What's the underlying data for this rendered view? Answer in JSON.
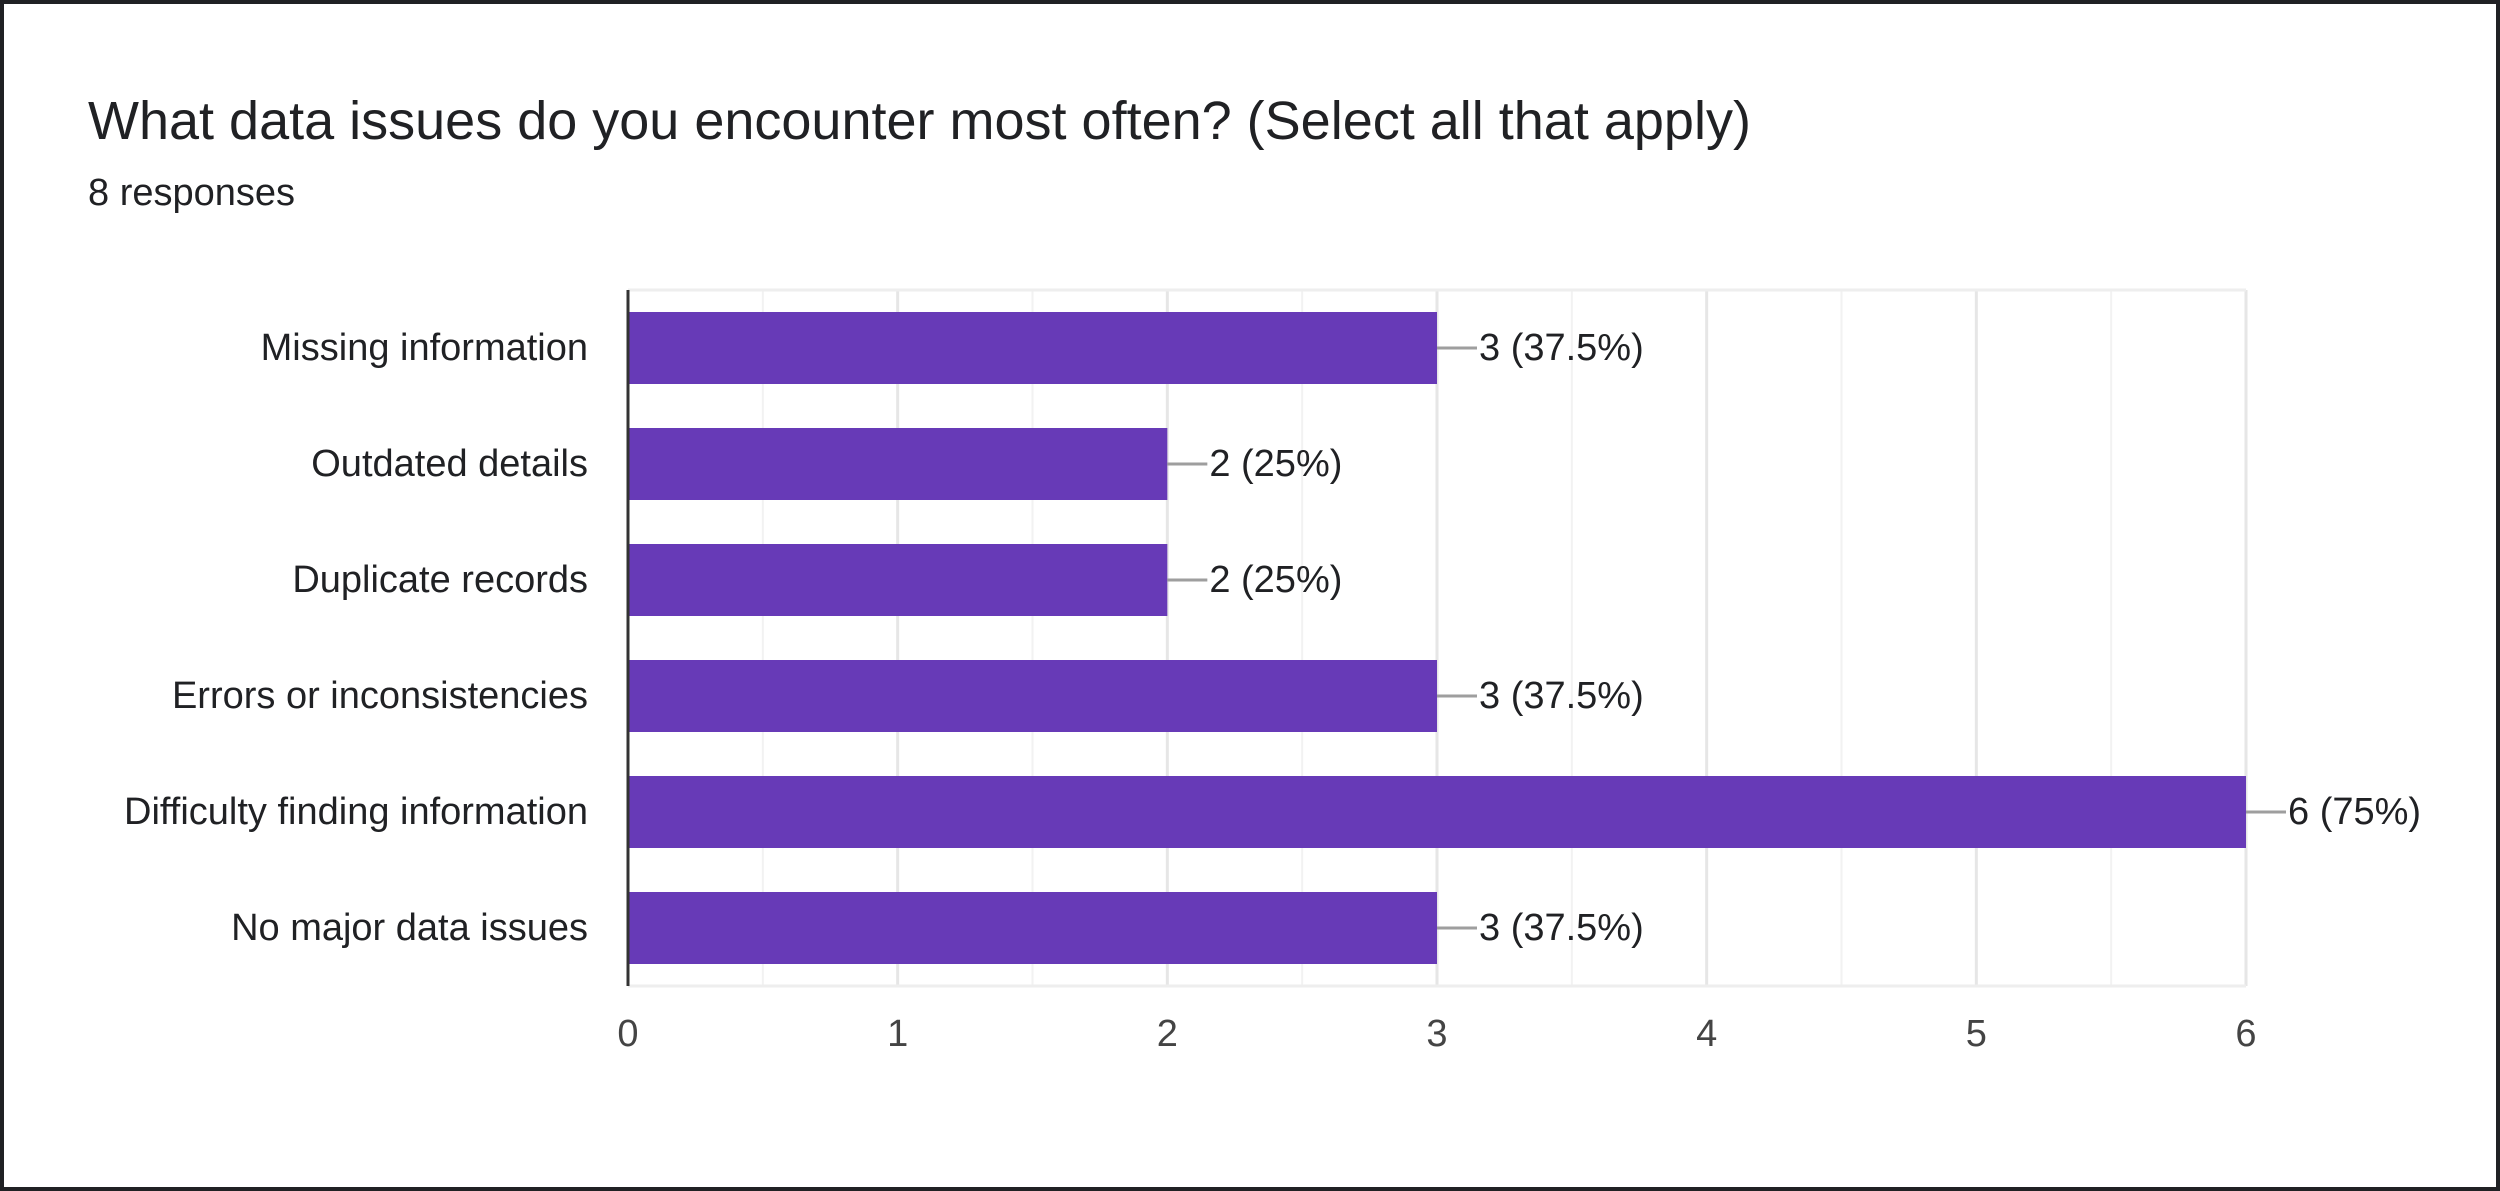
{
  "title": "What data issues do you encounter most often? (Select all that apply)",
  "subtitle": "8 responses",
  "colors": {
    "bar": "#673ab7",
    "grid": "#ebebeb",
    "axis": "#333333",
    "connector": "#9e9e9e",
    "text": "#202124"
  },
  "chart_data": {
    "type": "bar",
    "orientation": "horizontal",
    "categories": [
      "Missing information",
      "Outdated details",
      "Duplicate records",
      "Errors or inconsistencies",
      "Difficulty finding information",
      "No major data issues"
    ],
    "values": [
      3,
      2,
      2,
      3,
      6,
      3
    ],
    "data_labels": [
      "3 (37.5%)",
      "2 (25%)",
      "2 (25%)",
      "3 (37.5%)",
      "6 (75%)",
      "3 (37.5%)"
    ],
    "xlim": [
      0,
      6
    ],
    "xticks": [
      0,
      1,
      2,
      3,
      4,
      5,
      6
    ],
    "grid": true,
    "legend": "none"
  }
}
